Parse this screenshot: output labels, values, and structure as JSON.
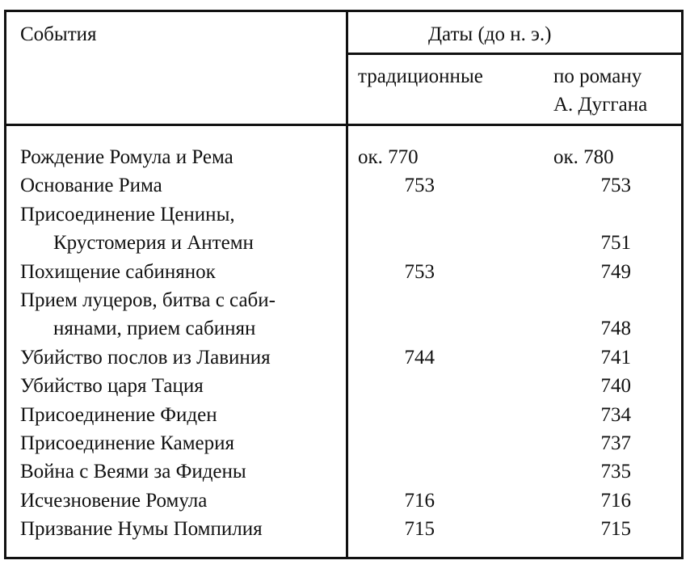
{
  "header": {
    "events": "События",
    "dates": "Даты (до н. э.)",
    "traditional": "традиционные",
    "novel_line1": "по роману",
    "novel_line2": "А. Дуггана"
  },
  "rows": [
    {
      "event": [
        "Рождение Ромула и Рема"
      ],
      "traditional": "ок. 770",
      "novel": "ок. 780"
    },
    {
      "event": [
        "Основание Рима"
      ],
      "traditional": "753",
      "novel": "753"
    },
    {
      "event": [
        "Присоединение Ценины,",
        "Крустомерия и Антемн"
      ],
      "traditional": "",
      "novel": "751"
    },
    {
      "event": [
        "Похищение сабинянок"
      ],
      "traditional": "753",
      "novel": "749"
    },
    {
      "event": [
        "Прием луцеров, битва с саби-",
        "нянами, прием сабинян"
      ],
      "traditional": "",
      "novel": "748"
    },
    {
      "event": [
        "Убийство послов из Лавиния"
      ],
      "traditional": "744",
      "novel": "741"
    },
    {
      "event": [
        "Убийство царя Тация"
      ],
      "traditional": "",
      "novel": "740"
    },
    {
      "event": [
        "Присоединение Фиден"
      ],
      "traditional": "",
      "novel": "734"
    },
    {
      "event": [
        "Присоединение Камерия"
      ],
      "traditional": "",
      "novel": "737"
    },
    {
      "event": [
        "Война с Веями за Фидены"
      ],
      "traditional": "",
      "novel": "735"
    },
    {
      "event": [
        "Исчезновение Ромула"
      ],
      "traditional": "716",
      "novel": "716"
    },
    {
      "event": [
        "Призвание Нумы Помпилия"
      ],
      "traditional": "715",
      "novel": "715"
    }
  ]
}
